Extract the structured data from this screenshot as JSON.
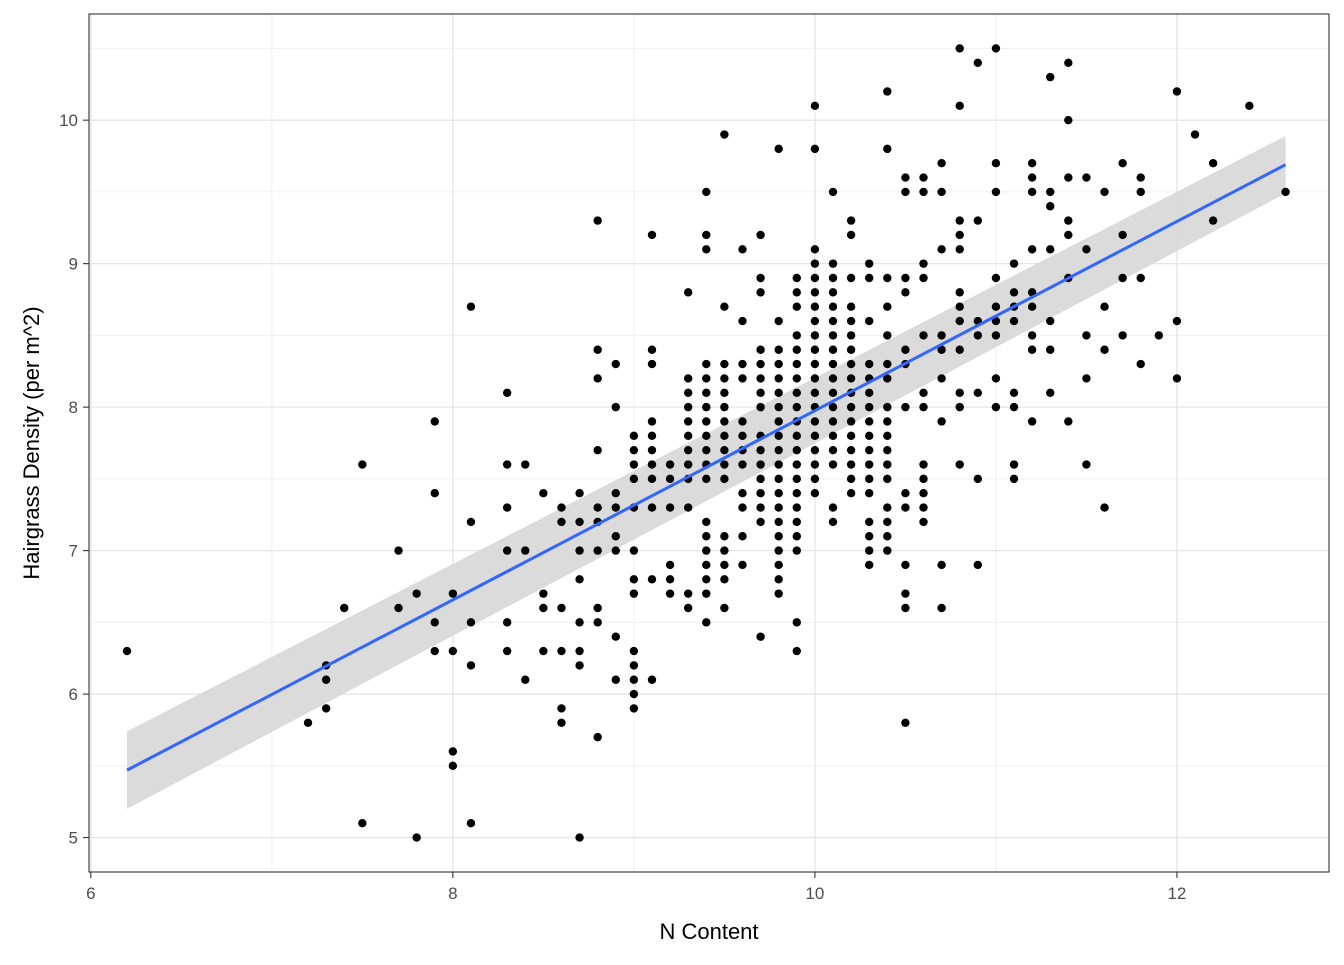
{
  "chart_data": {
    "type": "scatter",
    "title": "",
    "xlabel": "N Content",
    "ylabel": "Hairgrass Density (per m^2)",
    "xlim": [
      5.99,
      12.84
    ],
    "ylim": [
      4.76,
      10.74
    ],
    "x_ticks": [
      6,
      8,
      10,
      12
    ],
    "y_ticks": [
      5,
      6,
      7,
      8,
      9,
      10
    ],
    "x_tick_labels": [
      "6",
      "8",
      "10",
      "12"
    ],
    "y_tick_labels": [
      "5",
      "6",
      "7",
      "8",
      "9",
      "10"
    ],
    "grid": true,
    "legend": "none",
    "point_color": "#000000",
    "fit_line_color": "#3366ff",
    "ribbon_color": "#d9d9d9",
    "points": [
      [
        6.2,
        6.3
      ],
      [
        7.2,
        5.8
      ],
      [
        7.3,
        6.2
      ],
      [
        7.3,
        6.1
      ],
      [
        7.3,
        5.9
      ],
      [
        7.4,
        6.6
      ],
      [
        7.5,
        7.6
      ],
      [
        7.5,
        5.1
      ],
      [
        7.7,
        7.0
      ],
      [
        7.7,
        6.6
      ],
      [
        7.8,
        6.7
      ],
      [
        7.8,
        5.0
      ],
      [
        7.9,
        7.9
      ],
      [
        7.9,
        7.4
      ],
      [
        7.9,
        6.5
      ],
      [
        7.9,
        6.3
      ],
      [
        8.0,
        6.7
      ],
      [
        8.0,
        6.3
      ],
      [
        8.0,
        5.6
      ],
      [
        8.0,
        5.5
      ],
      [
        8.1,
        8.7
      ],
      [
        8.1,
        7.2
      ],
      [
        8.1,
        6.5
      ],
      [
        8.1,
        6.2
      ],
      [
        8.1,
        5.1
      ],
      [
        8.3,
        8.1
      ],
      [
        8.3,
        7.6
      ],
      [
        8.3,
        7.3
      ],
      [
        8.3,
        7.0
      ],
      [
        8.3,
        6.5
      ],
      [
        8.3,
        6.3
      ],
      [
        8.4,
        7.6
      ],
      [
        8.4,
        7.0
      ],
      [
        8.4,
        6.1
      ],
      [
        8.5,
        7.4
      ],
      [
        8.5,
        6.7
      ],
      [
        8.5,
        6.6
      ],
      [
        8.5,
        6.3
      ],
      [
        8.6,
        7.3
      ],
      [
        8.6,
        7.2
      ],
      [
        8.6,
        6.6
      ],
      [
        8.6,
        6.3
      ],
      [
        8.6,
        5.9
      ],
      [
        8.6,
        5.8
      ],
      [
        8.7,
        7.4
      ],
      [
        8.7,
        7.2
      ],
      [
        8.7,
        7.0
      ],
      [
        8.7,
        6.8
      ],
      [
        8.7,
        6.5
      ],
      [
        8.7,
        6.3
      ],
      [
        8.7,
        6.2
      ],
      [
        8.7,
        5.0
      ],
      [
        8.8,
        9.3
      ],
      [
        8.8,
        8.4
      ],
      [
        8.8,
        8.2
      ],
      [
        8.8,
        7.7
      ],
      [
        8.8,
        7.3
      ],
      [
        8.8,
        7.2
      ],
      [
        8.8,
        7.0
      ],
      [
        8.8,
        6.6
      ],
      [
        8.8,
        6.5
      ],
      [
        8.8,
        5.7
      ],
      [
        8.9,
        8.3
      ],
      [
        8.9,
        8.0
      ],
      [
        8.9,
        7.4
      ],
      [
        8.9,
        7.3
      ],
      [
        8.9,
        7.1
      ],
      [
        8.9,
        7.0
      ],
      [
        8.9,
        6.4
      ],
      [
        8.9,
        6.1
      ],
      [
        9.0,
        7.8
      ],
      [
        9.0,
        7.7
      ],
      [
        9.0,
        7.6
      ],
      [
        9.0,
        7.5
      ],
      [
        9.0,
        7.3
      ],
      [
        9.0,
        7.0
      ],
      [
        9.0,
        6.8
      ],
      [
        9.0,
        6.7
      ],
      [
        9.0,
        6.3
      ],
      [
        9.0,
        6.2
      ],
      [
        9.0,
        6.1
      ],
      [
        9.0,
        6.0
      ],
      [
        9.0,
        5.9
      ],
      [
        9.1,
        9.2
      ],
      [
        9.1,
        8.4
      ],
      [
        9.1,
        8.3
      ],
      [
        9.1,
        7.9
      ],
      [
        9.1,
        7.8
      ],
      [
        9.1,
        7.7
      ],
      [
        9.1,
        7.6
      ],
      [
        9.1,
        7.5
      ],
      [
        9.1,
        7.3
      ],
      [
        9.1,
        6.8
      ],
      [
        9.1,
        6.1
      ],
      [
        9.2,
        7.6
      ],
      [
        9.2,
        7.5
      ],
      [
        9.2,
        7.3
      ],
      [
        9.2,
        6.9
      ],
      [
        9.2,
        6.8
      ],
      [
        9.2,
        6.7
      ],
      [
        9.3,
        8.8
      ],
      [
        9.3,
        8.2
      ],
      [
        9.3,
        8.1
      ],
      [
        9.3,
        8.0
      ],
      [
        9.3,
        7.9
      ],
      [
        9.3,
        7.8
      ],
      [
        9.3,
        7.7
      ],
      [
        9.3,
        7.6
      ],
      [
        9.3,
        7.5
      ],
      [
        9.3,
        7.3
      ],
      [
        9.3,
        6.7
      ],
      [
        9.3,
        6.6
      ],
      [
        9.4,
        9.5
      ],
      [
        9.4,
        9.2
      ],
      [
        9.4,
        9.1
      ],
      [
        9.4,
        8.3
      ],
      [
        9.4,
        8.2
      ],
      [
        9.4,
        8.1
      ],
      [
        9.4,
        8.0
      ],
      [
        9.4,
        7.9
      ],
      [
        9.4,
        7.8
      ],
      [
        9.4,
        7.7
      ],
      [
        9.4,
        7.6
      ],
      [
        9.4,
        7.5
      ],
      [
        9.4,
        7.2
      ],
      [
        9.4,
        7.1
      ],
      [
        9.4,
        7.0
      ],
      [
        9.4,
        6.9
      ],
      [
        9.4,
        6.8
      ],
      [
        9.4,
        6.7
      ],
      [
        9.4,
        6.5
      ],
      [
        9.5,
        9.9
      ],
      [
        9.5,
        8.7
      ],
      [
        9.5,
        8.3
      ],
      [
        9.5,
        8.2
      ],
      [
        9.5,
        8.1
      ],
      [
        9.5,
        8.0
      ],
      [
        9.5,
        7.9
      ],
      [
        9.5,
        7.8
      ],
      [
        9.5,
        7.7
      ],
      [
        9.5,
        7.6
      ],
      [
        9.5,
        7.5
      ],
      [
        9.5,
        7.1
      ],
      [
        9.5,
        7.0
      ],
      [
        9.5,
        6.9
      ],
      [
        9.5,
        6.8
      ],
      [
        9.5,
        6.6
      ],
      [
        9.6,
        9.1
      ],
      [
        9.6,
        8.6
      ],
      [
        9.6,
        8.3
      ],
      [
        9.6,
        8.2
      ],
      [
        9.6,
        7.9
      ],
      [
        9.6,
        7.8
      ],
      [
        9.6,
        7.7
      ],
      [
        9.6,
        7.6
      ],
      [
        9.6,
        7.4
      ],
      [
        9.6,
        7.3
      ],
      [
        9.6,
        7.1
      ],
      [
        9.6,
        6.9
      ],
      [
        9.7,
        9.2
      ],
      [
        9.7,
        8.9
      ],
      [
        9.7,
        8.8
      ],
      [
        9.7,
        8.4
      ],
      [
        9.7,
        8.3
      ],
      [
        9.7,
        8.2
      ],
      [
        9.7,
        8.1
      ],
      [
        9.7,
        8.0
      ],
      [
        9.7,
        7.8
      ],
      [
        9.7,
        7.7
      ],
      [
        9.7,
        7.6
      ],
      [
        9.7,
        7.5
      ],
      [
        9.7,
        7.4
      ],
      [
        9.7,
        7.3
      ],
      [
        9.7,
        7.2
      ],
      [
        9.7,
        6.4
      ],
      [
        9.8,
        9.8
      ],
      [
        9.8,
        8.6
      ],
      [
        9.8,
        8.4
      ],
      [
        9.8,
        8.3
      ],
      [
        9.8,
        8.2
      ],
      [
        9.8,
        8.1
      ],
      [
        9.8,
        8.0
      ],
      [
        9.8,
        7.9
      ],
      [
        9.8,
        7.8
      ],
      [
        9.8,
        7.7
      ],
      [
        9.8,
        7.6
      ],
      [
        9.8,
        7.5
      ],
      [
        9.8,
        7.4
      ],
      [
        9.8,
        7.3
      ],
      [
        9.8,
        7.2
      ],
      [
        9.8,
        7.1
      ],
      [
        9.8,
        7.0
      ],
      [
        9.8,
        6.9
      ],
      [
        9.8,
        6.8
      ],
      [
        9.8,
        6.7
      ],
      [
        9.9,
        8.9
      ],
      [
        9.9,
        8.8
      ],
      [
        9.9,
        8.7
      ],
      [
        9.9,
        8.5
      ],
      [
        9.9,
        8.4
      ],
      [
        9.9,
        8.3
      ],
      [
        9.9,
        8.2
      ],
      [
        9.9,
        8.1
      ],
      [
        9.9,
        8.0
      ],
      [
        9.9,
        7.9
      ],
      [
        9.9,
        7.8
      ],
      [
        9.9,
        7.7
      ],
      [
        9.9,
        7.6
      ],
      [
        9.9,
        7.5
      ],
      [
        9.9,
        7.4
      ],
      [
        9.9,
        7.3
      ],
      [
        9.9,
        7.2
      ],
      [
        9.9,
        7.1
      ],
      [
        9.9,
        7.0
      ],
      [
        9.9,
        6.5
      ],
      [
        9.9,
        6.3
      ],
      [
        10.0,
        10.1
      ],
      [
        10.0,
        9.8
      ],
      [
        10.0,
        9.1
      ],
      [
        10.0,
        9.0
      ],
      [
        10.0,
        8.9
      ],
      [
        10.0,
        8.8
      ],
      [
        10.0,
        8.7
      ],
      [
        10.0,
        8.6
      ],
      [
        10.0,
        8.5
      ],
      [
        10.0,
        8.4
      ],
      [
        10.0,
        8.3
      ],
      [
        10.0,
        8.2
      ],
      [
        10.0,
        8.1
      ],
      [
        10.0,
        8.0
      ],
      [
        10.0,
        7.9
      ],
      [
        10.0,
        7.8
      ],
      [
        10.0,
        7.7
      ],
      [
        10.0,
        7.6
      ],
      [
        10.0,
        7.5
      ],
      [
        10.0,
        7.4
      ],
      [
        10.1,
        9.5
      ],
      [
        10.1,
        9.0
      ],
      [
        10.1,
        8.9
      ],
      [
        10.1,
        8.8
      ],
      [
        10.1,
        8.7
      ],
      [
        10.1,
        8.6
      ],
      [
        10.1,
        8.5
      ],
      [
        10.1,
        8.4
      ],
      [
        10.1,
        8.3
      ],
      [
        10.1,
        8.2
      ],
      [
        10.1,
        8.1
      ],
      [
        10.1,
        8.0
      ],
      [
        10.1,
        7.9
      ],
      [
        10.1,
        7.8
      ],
      [
        10.1,
        7.7
      ],
      [
        10.1,
        7.6
      ],
      [
        10.1,
        7.3
      ],
      [
        10.1,
        7.2
      ],
      [
        10.2,
        9.3
      ],
      [
        10.2,
        9.2
      ],
      [
        10.2,
        8.9
      ],
      [
        10.2,
        8.7
      ],
      [
        10.2,
        8.6
      ],
      [
        10.2,
        8.5
      ],
      [
        10.2,
        8.4
      ],
      [
        10.2,
        8.3
      ],
      [
        10.2,
        8.2
      ],
      [
        10.2,
        8.1
      ],
      [
        10.2,
        8.0
      ],
      [
        10.2,
        7.9
      ],
      [
        10.2,
        7.8
      ],
      [
        10.2,
        7.7
      ],
      [
        10.2,
        7.6
      ],
      [
        10.2,
        7.5
      ],
      [
        10.2,
        7.4
      ],
      [
        10.3,
        9.0
      ],
      [
        10.3,
        8.9
      ],
      [
        10.3,
        8.6
      ],
      [
        10.3,
        8.3
      ],
      [
        10.3,
        8.2
      ],
      [
        10.3,
        8.1
      ],
      [
        10.3,
        8.0
      ],
      [
        10.3,
        7.9
      ],
      [
        10.3,
        7.8
      ],
      [
        10.3,
        7.7
      ],
      [
        10.3,
        7.6
      ],
      [
        10.3,
        7.5
      ],
      [
        10.3,
        7.4
      ],
      [
        10.3,
        7.2
      ],
      [
        10.3,
        7.1
      ],
      [
        10.3,
        7.0
      ],
      [
        10.3,
        6.9
      ],
      [
        10.4,
        10.2
      ],
      [
        10.4,
        9.8
      ],
      [
        10.4,
        8.9
      ],
      [
        10.4,
        8.7
      ],
      [
        10.4,
        8.5
      ],
      [
        10.4,
        8.3
      ],
      [
        10.4,
        8.2
      ],
      [
        10.4,
        8.0
      ],
      [
        10.4,
        7.9
      ],
      [
        10.4,
        7.8
      ],
      [
        10.4,
        7.7
      ],
      [
        10.4,
        7.6
      ],
      [
        10.4,
        7.5
      ],
      [
        10.4,
        7.3
      ],
      [
        10.4,
        7.2
      ],
      [
        10.4,
        7.1
      ],
      [
        10.4,
        7.0
      ],
      [
        10.5,
        9.6
      ],
      [
        10.5,
        9.5
      ],
      [
        10.5,
        8.9
      ],
      [
        10.5,
        8.8
      ],
      [
        10.5,
        8.4
      ],
      [
        10.5,
        8.3
      ],
      [
        10.5,
        8.0
      ],
      [
        10.5,
        7.4
      ],
      [
        10.5,
        7.3
      ],
      [
        10.5,
        6.9
      ],
      [
        10.5,
        6.7
      ],
      [
        10.5,
        6.6
      ],
      [
        10.5,
        5.8
      ],
      [
        10.6,
        9.6
      ],
      [
        10.6,
        9.5
      ],
      [
        10.6,
        9.0
      ],
      [
        10.6,
        8.9
      ],
      [
        10.6,
        8.5
      ],
      [
        10.6,
        8.1
      ],
      [
        10.6,
        8.0
      ],
      [
        10.6,
        7.6
      ],
      [
        10.6,
        7.5
      ],
      [
        10.6,
        7.4
      ],
      [
        10.6,
        7.3
      ],
      [
        10.6,
        7.2
      ],
      [
        10.7,
        9.7
      ],
      [
        10.7,
        9.5
      ],
      [
        10.7,
        9.1
      ],
      [
        10.7,
        8.5
      ],
      [
        10.7,
        8.4
      ],
      [
        10.7,
        8.2
      ],
      [
        10.7,
        7.9
      ],
      [
        10.7,
        6.9
      ],
      [
        10.7,
        6.6
      ],
      [
        10.8,
        10.5
      ],
      [
        10.8,
        10.1
      ],
      [
        10.8,
        9.3
      ],
      [
        10.8,
        9.2
      ],
      [
        10.8,
        9.1
      ],
      [
        10.8,
        8.8
      ],
      [
        10.8,
        8.7
      ],
      [
        10.8,
        8.6
      ],
      [
        10.8,
        8.4
      ],
      [
        10.8,
        8.1
      ],
      [
        10.8,
        8.0
      ],
      [
        10.8,
        7.6
      ],
      [
        10.9,
        10.4
      ],
      [
        10.9,
        9.3
      ],
      [
        10.9,
        8.6
      ],
      [
        10.9,
        8.5
      ],
      [
        10.9,
        8.1
      ],
      [
        10.9,
        7.5
      ],
      [
        10.9,
        6.9
      ],
      [
        11.0,
        10.5
      ],
      [
        11.0,
        9.7
      ],
      [
        11.0,
        9.5
      ],
      [
        11.0,
        8.9
      ],
      [
        11.0,
        8.7
      ],
      [
        11.0,
        8.6
      ],
      [
        11.0,
        8.5
      ],
      [
        11.0,
        8.2
      ],
      [
        11.0,
        8.0
      ],
      [
        11.1,
        9.0
      ],
      [
        11.1,
        8.8
      ],
      [
        11.1,
        8.7
      ],
      [
        11.1,
        8.6
      ],
      [
        11.1,
        8.1
      ],
      [
        11.1,
        8.0
      ],
      [
        11.1,
        7.6
      ],
      [
        11.1,
        7.5
      ],
      [
        11.2,
        9.7
      ],
      [
        11.2,
        9.6
      ],
      [
        11.2,
        9.5
      ],
      [
        11.2,
        9.1
      ],
      [
        11.2,
        8.8
      ],
      [
        11.2,
        8.7
      ],
      [
        11.2,
        8.5
      ],
      [
        11.2,
        8.4
      ],
      [
        11.2,
        7.9
      ],
      [
        11.3,
        10.3
      ],
      [
        11.3,
        9.5
      ],
      [
        11.3,
        9.4
      ],
      [
        11.3,
        9.1
      ],
      [
        11.3,
        8.6
      ],
      [
        11.3,
        8.4
      ],
      [
        11.3,
        8.1
      ],
      [
        11.4,
        10.4
      ],
      [
        11.4,
        10.0
      ],
      [
        11.4,
        9.6
      ],
      [
        11.4,
        9.3
      ],
      [
        11.4,
        9.2
      ],
      [
        11.4,
        8.9
      ],
      [
        11.4,
        7.9
      ],
      [
        11.5,
        9.6
      ],
      [
        11.5,
        9.1
      ],
      [
        11.5,
        8.5
      ],
      [
        11.5,
        8.2
      ],
      [
        11.5,
        7.6
      ],
      [
        11.6,
        9.5
      ],
      [
        11.6,
        8.7
      ],
      [
        11.6,
        8.4
      ],
      [
        11.6,
        7.3
      ],
      [
        11.7,
        9.7
      ],
      [
        11.7,
        9.2
      ],
      [
        11.7,
        8.9
      ],
      [
        11.7,
        8.5
      ],
      [
        11.8,
        9.6
      ],
      [
        11.8,
        9.5
      ],
      [
        11.8,
        8.9
      ],
      [
        11.8,
        8.3
      ],
      [
        11.9,
        8.5
      ],
      [
        12.0,
        10.2
      ],
      [
        12.0,
        8.6
      ],
      [
        12.0,
        8.2
      ],
      [
        12.1,
        9.9
      ],
      [
        12.2,
        9.7
      ],
      [
        12.2,
        9.3
      ],
      [
        12.4,
        10.1
      ],
      [
        12.6,
        9.5
      ]
    ],
    "smooth": {
      "method": "lm",
      "x": [
        6.2,
        12.6
      ],
      "y": [
        5.47,
        9.69
      ],
      "ci_lower": [
        5.2,
        9.49
      ],
      "ci_upper": [
        5.74,
        9.89
      ]
    }
  }
}
